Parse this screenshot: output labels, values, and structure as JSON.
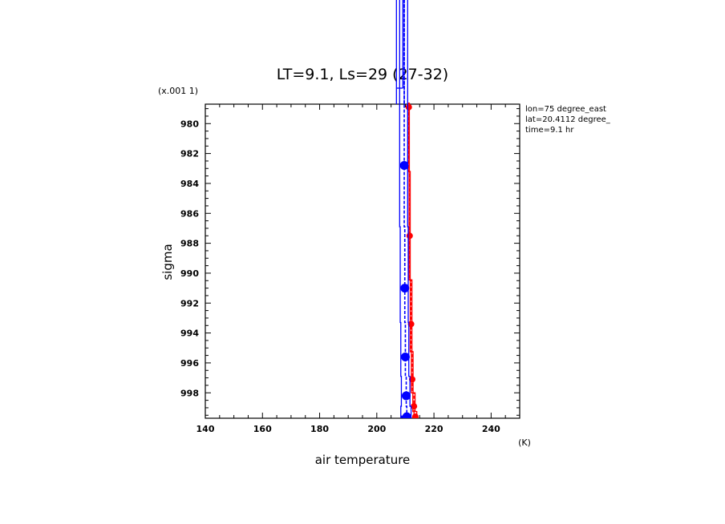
{
  "chart_data": {
    "type": "line",
    "title": "LT=9.1, Ls=29 (27-32)",
    "xlabel": "air temperature",
    "xunit": "(K)",
    "ylabel": "sigma",
    "yscale_label": "(x.001 1)",
    "xlim": [
      140,
      250
    ],
    "ylim": [
      999.7,
      978.7
    ],
    "y_inverted": true,
    "xticks": [
      140,
      160,
      180,
      200,
      220,
      240
    ],
    "yticks": [
      980,
      982,
      984,
      986,
      988,
      990,
      992,
      994,
      996,
      998
    ],
    "grid": false,
    "annotations": [
      "lon=75 degree_east",
      "lat=20.4112 degree_",
      "time=9.1 hr"
    ],
    "series": [
      {
        "color": "#ff0000",
        "points": [
          {
            "sigma": 978.9,
            "mean": 211.2,
            "min": 211.0,
            "max": 211.4
          },
          {
            "sigma": 987.5,
            "mean": 211.5,
            "min": 211.3,
            "max": 211.7
          },
          {
            "sigma": 993.4,
            "mean": 212.0,
            "min": 211.7,
            "max": 212.3
          },
          {
            "sigma": 997.1,
            "mean": 212.4,
            "min": 212.1,
            "max": 212.7
          },
          {
            "sigma": 998.9,
            "mean": 213.0,
            "min": 212.6,
            "max": 213.4
          },
          {
            "sigma": 999.6,
            "mean": 213.5,
            "min": 213.0,
            "max": 214.0
          }
        ]
      },
      {
        "color": "#0000ff",
        "points": [
          {
            "sigma": 982.8,
            "mean": 209.6,
            "min": 208.0,
            "max": 210.8
          },
          {
            "sigma": 991.0,
            "mean": 209.8,
            "min": 208.2,
            "max": 211.0
          },
          {
            "sigma": 995.6,
            "mean": 210.0,
            "min": 208.4,
            "max": 211.2
          },
          {
            "sigma": 998.2,
            "mean": 210.3,
            "min": 208.6,
            "max": 211.6
          },
          {
            "sigma": 999.6,
            "mean": 210.5,
            "min": 208.4,
            "max": 212.0
          }
        ]
      }
    ]
  }
}
